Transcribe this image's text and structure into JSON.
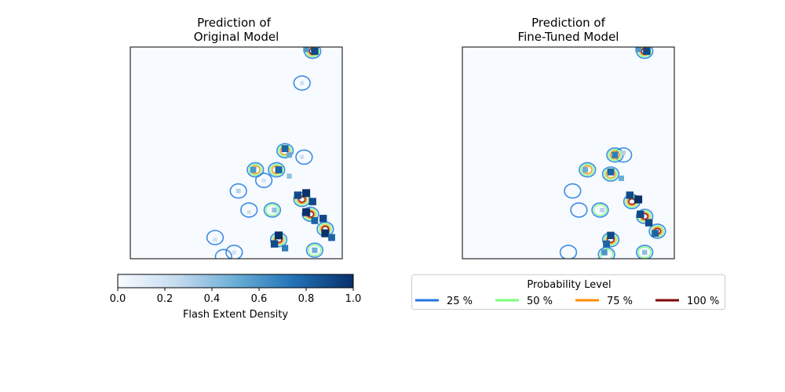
{
  "figure": {
    "panels": [
      {
        "title_line1": "Prediction of",
        "title_line2": "Original Model"
      },
      {
        "title_line1": "Prediction of",
        "title_line2": "Fine-Tuned Model"
      }
    ]
  },
  "chart_data": {
    "type": "heatmap",
    "description_of_content": "Two side-by-side spatial maps of predicted flash extent density with probability contours",
    "colorbar": {
      "label": "Flash Extent Density",
      "range": [
        0.0,
        1.0
      ],
      "ticks": [
        "0.0",
        "0.2",
        "0.4",
        "0.6",
        "0.8",
        "1.0"
      ],
      "colormap_stops": [
        "#f7fbff",
        "#c6dbef",
        "#6baed6",
        "#2171b5",
        "#08306b"
      ]
    },
    "legend": {
      "title": "Probability Level",
      "entries": [
        {
          "label": "25 %",
          "color": "#1f77e0"
        },
        {
          "label": "50 %",
          "color": "#7cfc7c"
        },
        {
          "label": "75 %",
          "color": "#ff8c00"
        },
        {
          "label": "100 %",
          "color": "#800000"
        }
      ]
    },
    "panels": [
      {
        "name": "Original Model",
        "cells": [
          {
            "x": 0.87,
            "y": 0.98,
            "v": 0.9
          },
          {
            "x": 0.83,
            "y": 0.99,
            "v": 0.6
          },
          {
            "x": 0.81,
            "y": 0.83,
            "v": 0.2
          },
          {
            "x": 0.73,
            "y": 0.52,
            "v": 0.8
          },
          {
            "x": 0.75,
            "y": 0.49,
            "v": 0.5
          },
          {
            "x": 0.81,
            "y": 0.48,
            "v": 0.2
          },
          {
            "x": 0.58,
            "y": 0.42,
            "v": 0.6
          },
          {
            "x": 0.7,
            "y": 0.42,
            "v": 0.8
          },
          {
            "x": 0.75,
            "y": 0.39,
            "v": 0.4
          },
          {
            "x": 0.63,
            "y": 0.37,
            "v": 0.2
          },
          {
            "x": 0.83,
            "y": 0.31,
            "v": 1.0
          },
          {
            "x": 0.79,
            "y": 0.3,
            "v": 0.9
          },
          {
            "x": 0.86,
            "y": 0.27,
            "v": 0.9
          },
          {
            "x": 0.83,
            "y": 0.22,
            "v": 1.0
          },
          {
            "x": 0.87,
            "y": 0.18,
            "v": 0.8
          },
          {
            "x": 0.51,
            "y": 0.32,
            "v": 0.3
          },
          {
            "x": 0.68,
            "y": 0.23,
            "v": 0.4
          },
          {
            "x": 0.56,
            "y": 0.22,
            "v": 0.2
          },
          {
            "x": 0.91,
            "y": 0.19,
            "v": 0.9
          },
          {
            "x": 0.92,
            "y": 0.12,
            "v": 1.0
          },
          {
            "x": 0.95,
            "y": 0.1,
            "v": 0.8
          },
          {
            "x": 0.7,
            "y": 0.11,
            "v": 1.0
          },
          {
            "x": 0.68,
            "y": 0.07,
            "v": 0.9
          },
          {
            "x": 0.73,
            "y": 0.05,
            "v": 0.7
          },
          {
            "x": 0.87,
            "y": 0.04,
            "v": 0.5
          },
          {
            "x": 0.4,
            "y": 0.09,
            "v": 0.2
          },
          {
            "x": 0.49,
            "y": 0.03,
            "v": 0.2
          }
        ],
        "contours": [
          {
            "x": 0.86,
            "y": 0.98,
            "level": 100
          },
          {
            "x": 0.81,
            "y": 0.83,
            "level": 25
          },
          {
            "x": 0.73,
            "y": 0.51,
            "level": 75
          },
          {
            "x": 0.82,
            "y": 0.48,
            "level": 25
          },
          {
            "x": 0.59,
            "y": 0.42,
            "level": 75
          },
          {
            "x": 0.69,
            "y": 0.42,
            "level": 75
          },
          {
            "x": 0.63,
            "y": 0.37,
            "level": 25
          },
          {
            "x": 0.51,
            "y": 0.32,
            "level": 25
          },
          {
            "x": 0.81,
            "y": 0.28,
            "level": 100
          },
          {
            "x": 0.85,
            "y": 0.21,
            "level": 100
          },
          {
            "x": 0.67,
            "y": 0.23,
            "level": 50
          },
          {
            "x": 0.56,
            "y": 0.23,
            "level": 25
          },
          {
            "x": 0.92,
            "y": 0.14,
            "level": 100
          },
          {
            "x": 0.7,
            "y": 0.09,
            "level": 100
          },
          {
            "x": 0.87,
            "y": 0.04,
            "level": 50
          },
          {
            "x": 0.4,
            "y": 0.1,
            "level": 25
          },
          {
            "x": 0.49,
            "y": 0.03,
            "level": 25
          },
          {
            "x": 0.44,
            "y": 0.01,
            "level": 25
          }
        ]
      },
      {
        "name": "Fine-Tuned Model",
        "cells": [
          {
            "x": 0.87,
            "y": 0.98,
            "v": 0.9
          },
          {
            "x": 0.83,
            "y": 0.99,
            "v": 0.6
          },
          {
            "x": 0.72,
            "y": 0.49,
            "v": 0.7
          },
          {
            "x": 0.76,
            "y": 0.5,
            "v": 0.3
          },
          {
            "x": 0.58,
            "y": 0.42,
            "v": 0.5
          },
          {
            "x": 0.7,
            "y": 0.41,
            "v": 0.8
          },
          {
            "x": 0.75,
            "y": 0.38,
            "v": 0.5
          },
          {
            "x": 0.79,
            "y": 0.3,
            "v": 0.9
          },
          {
            "x": 0.83,
            "y": 0.28,
            "v": 1.0
          },
          {
            "x": 0.84,
            "y": 0.21,
            "v": 0.9
          },
          {
            "x": 0.66,
            "y": 0.23,
            "v": 0.3
          },
          {
            "x": 0.88,
            "y": 0.17,
            "v": 0.9
          },
          {
            "x": 0.91,
            "y": 0.12,
            "v": 0.8
          },
          {
            "x": 0.7,
            "y": 0.11,
            "v": 0.9
          },
          {
            "x": 0.68,
            "y": 0.07,
            "v": 0.8
          },
          {
            "x": 0.67,
            "y": 0.03,
            "v": 0.6
          },
          {
            "x": 0.86,
            "y": 0.03,
            "v": 0.4
          }
        ],
        "contours": [
          {
            "x": 0.86,
            "y": 0.98,
            "level": 100
          },
          {
            "x": 0.72,
            "y": 0.49,
            "level": 75
          },
          {
            "x": 0.76,
            "y": 0.49,
            "level": 25
          },
          {
            "x": 0.59,
            "y": 0.42,
            "level": 75
          },
          {
            "x": 0.7,
            "y": 0.4,
            "level": 75
          },
          {
            "x": 0.52,
            "y": 0.32,
            "level": 25
          },
          {
            "x": 0.8,
            "y": 0.27,
            "level": 100
          },
          {
            "x": 0.86,
            "y": 0.2,
            "level": 100
          },
          {
            "x": 0.65,
            "y": 0.23,
            "level": 50
          },
          {
            "x": 0.55,
            "y": 0.23,
            "level": 25
          },
          {
            "x": 0.92,
            "y": 0.13,
            "level": 100
          },
          {
            "x": 0.7,
            "y": 0.09,
            "level": 100
          },
          {
            "x": 0.68,
            "y": 0.02,
            "level": 50
          },
          {
            "x": 0.86,
            "y": 0.03,
            "level": 50
          },
          {
            "x": 0.5,
            "y": 0.03,
            "level": 25
          }
        ]
      }
    ]
  }
}
